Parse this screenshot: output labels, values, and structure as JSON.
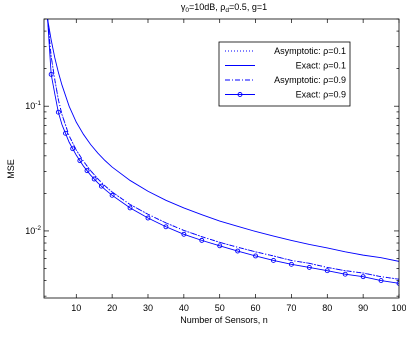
{
  "chart_data": {
    "type": "line",
    "title_parts": {
      "gamma": "γ",
      "gamma_sub": "0",
      "gamma_rest": "=10dB, ρ",
      "rho_sub": "d",
      "rest": "=0.5, g=1"
    },
    "xlabel": "Number of Sensors, n",
    "ylabel": "MSE",
    "xlim": [
      1,
      100
    ],
    "ylim": [
      0.0029,
      0.5
    ],
    "yscale": "log",
    "xticks": [
      10,
      20,
      30,
      40,
      50,
      60,
      70,
      80,
      90,
      100
    ],
    "xtick_labels": [
      "10",
      "20",
      "30",
      "40",
      "50",
      "60",
      "70",
      "80",
      "90",
      "100"
    ],
    "ytick_labels": [
      {
        "base": "10",
        "exp": "-1",
        "value": 0.1
      },
      {
        "base": "10",
        "exp": "-2",
        "value": 0.01
      }
    ],
    "legend_position": "top-right",
    "series": [
      {
        "name": "Asymptotic: ρ=0.1",
        "style": "dotted",
        "marker": "none",
        "color": "#0000ff",
        "x": [
          2,
          3,
          4,
          5,
          6,
          8,
          10,
          12,
          14,
          16,
          18,
          20,
          25,
          30,
          35,
          40,
          45,
          50,
          55,
          60,
          65,
          70,
          75,
          80,
          85,
          90,
          95,
          100
        ],
        "y": [
          0.5,
          0.25,
          0.164,
          0.113,
          0.086,
          0.058,
          0.0445,
          0.0362,
          0.0304,
          0.0262,
          0.023,
          0.0205,
          0.0163,
          0.0136,
          0.0116,
          0.0101,
          0.009,
          0.0081,
          0.0074,
          0.0068,
          0.0063,
          0.0058,
          0.0055,
          0.0051,
          0.0048,
          0.0046,
          0.0043,
          0.0041
        ]
      },
      {
        "name": "Exact: ρ=0.1",
        "style": "solid",
        "marker": "none",
        "color": "#0000ff",
        "x": [
          2,
          3,
          4,
          5,
          6,
          8,
          10,
          12,
          14,
          16,
          18,
          20,
          25,
          30,
          35,
          40,
          45,
          50,
          55,
          60,
          65,
          70,
          75,
          80,
          85,
          90,
          95,
          100
        ],
        "y": [
          0.5,
          0.34,
          0.245,
          0.187,
          0.148,
          0.1,
          0.0745,
          0.0595,
          0.0493,
          0.0421,
          0.0367,
          0.0325,
          0.0254,
          0.0208,
          0.0176,
          0.0153,
          0.0135,
          0.012,
          0.0109,
          0.0099,
          0.0091,
          0.0084,
          0.0078,
          0.0073,
          0.0068,
          0.0064,
          0.0061,
          0.0057
        ]
      },
      {
        "name": "Asymptotic: ρ=0.9",
        "style": "dashdot",
        "marker": "none",
        "color": "#0000ff",
        "x": [
          2,
          3,
          4,
          5,
          6,
          8,
          10,
          12,
          14,
          16,
          18,
          20,
          25,
          30,
          35,
          40,
          45,
          50,
          55,
          60,
          65,
          70,
          75,
          80,
          85,
          90,
          95,
          100
        ],
        "y": [
          0.5,
          0.25,
          0.164,
          0.113,
          0.086,
          0.058,
          0.0445,
          0.0362,
          0.0304,
          0.0262,
          0.023,
          0.0205,
          0.0163,
          0.0136,
          0.0116,
          0.0101,
          0.009,
          0.0081,
          0.0074,
          0.0068,
          0.0063,
          0.0058,
          0.0055,
          0.0051,
          0.0048,
          0.0046,
          0.0043,
          0.0041
        ]
      },
      {
        "name": "Exact: ρ=0.9",
        "style": "solid",
        "marker": "circle",
        "color": "#0000ff",
        "x": [
          2,
          3,
          4,
          5,
          6,
          8,
          10,
          12,
          14,
          16,
          18,
          20,
          25,
          30,
          35,
          40,
          45,
          50,
          55,
          60,
          65,
          70,
          75,
          80,
          85,
          90,
          95,
          100
        ],
        "y": [
          0.5,
          0.18,
          0.126,
          0.0895,
          0.0713,
          0.0515,
          0.0405,
          0.0331,
          0.028,
          0.0243,
          0.0215,
          0.0193,
          0.0153,
          0.0127,
          0.0108,
          0.0094,
          0.0084,
          0.0076,
          0.0069,
          0.0063,
          0.0058,
          0.0054,
          0.0051,
          0.0048,
          0.0045,
          0.0043,
          0.004,
          0.0038
        ]
      }
    ],
    "marker_x": [
      3,
      5,
      7,
      9,
      11,
      13,
      15,
      17,
      20,
      25,
      30,
      35,
      40,
      45,
      50,
      55,
      60,
      65,
      70,
      75,
      80,
      85,
      90,
      95,
      100
    ]
  }
}
